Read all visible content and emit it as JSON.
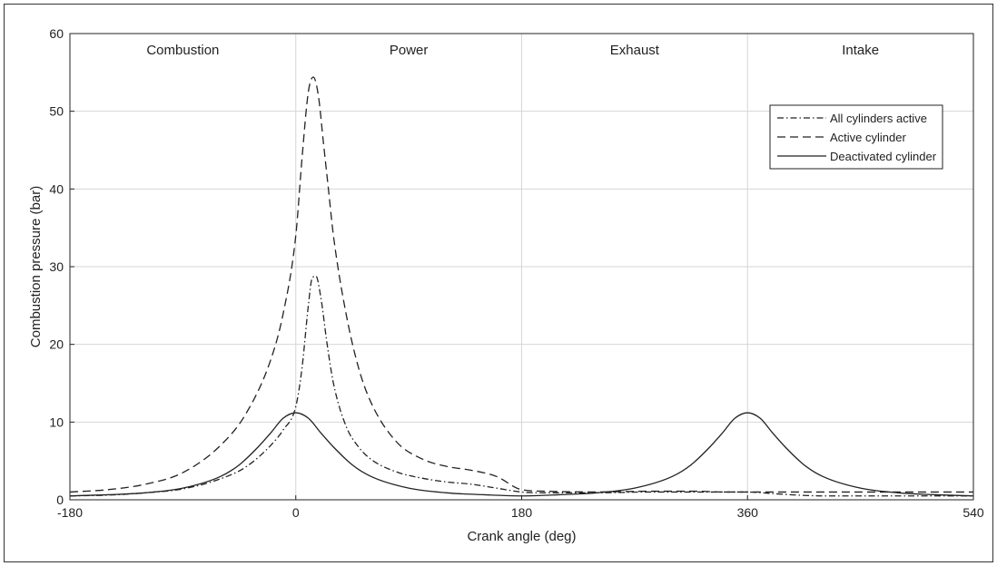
{
  "chart_data": {
    "type": "line",
    "title": "",
    "xlabel": "Crank angle (deg)",
    "ylabel": "Combustion pressure (bar)",
    "xlim": [
      -180,
      540
    ],
    "ylim": [
      0,
      60
    ],
    "xticks": [
      -180,
      0,
      180,
      360,
      540
    ],
    "yticks": [
      0,
      10,
      20,
      30,
      40,
      50,
      60
    ],
    "grid": true,
    "legend_position": "top-right",
    "phases": [
      "Combustion",
      "Power",
      "Exhaust",
      "Intake"
    ],
    "series": [
      {
        "name": "All cylinders active",
        "style": "dashdot",
        "x": [
          -180,
          -150,
          -120,
          -90,
          -60,
          -40,
          -20,
          -10,
          0,
          5,
          10,
          13,
          16,
          20,
          25,
          30,
          40,
          50,
          60,
          80,
          100,
          120,
          140,
          160,
          180,
          200,
          240,
          280,
          320,
          340,
          360,
          380,
          400,
          420,
          450,
          480,
          510,
          540
        ],
        "y": [
          0.5,
          0.6,
          0.9,
          1.4,
          2.7,
          4.2,
          7.0,
          9.0,
          12.0,
          17.0,
          25.0,
          28.5,
          28.8,
          26.0,
          20.0,
          15.0,
          9.5,
          6.8,
          5.2,
          3.6,
          2.8,
          2.3,
          2.0,
          1.5,
          1.0,
          0.9,
          0.9,
          1.0,
          1.0,
          1.0,
          1.0,
          0.8,
          0.6,
          0.5,
          0.5,
          0.5,
          0.5,
          0.5
        ]
      },
      {
        "name": "Active cylinder",
        "style": "dashed",
        "x": [
          -180,
          -150,
          -120,
          -90,
          -60,
          -40,
          -20,
          -10,
          0,
          5,
          10,
          14,
          18,
          22,
          26,
          30,
          40,
          50,
          60,
          80,
          100,
          120,
          140,
          160,
          180,
          200,
          240,
          280,
          320,
          340,
          360,
          380,
          400,
          420,
          450,
          480,
          510,
          540
        ],
        "y": [
          1.0,
          1.3,
          2.0,
          3.5,
          7.0,
          11.0,
          18.0,
          24.0,
          34.0,
          44.0,
          52.5,
          54.4,
          52.0,
          46.0,
          40.0,
          34.0,
          24.0,
          17.0,
          12.5,
          7.5,
          5.3,
          4.3,
          3.8,
          3.0,
          1.3,
          1.1,
          1.0,
          1.1,
          1.1,
          1.0,
          1.0,
          1.0,
          1.0,
          1.0,
          1.0,
          1.0,
          1.0,
          1.0
        ]
      },
      {
        "name": "Deactivated cylinder",
        "style": "solid",
        "x": [
          -180,
          -150,
          -120,
          -90,
          -60,
          -45,
          -30,
          -20,
          -10,
          0,
          10,
          20,
          30,
          45,
          60,
          90,
          120,
          150,
          180,
          210,
          240,
          270,
          300,
          315,
          330,
          340,
          350,
          360,
          370,
          380,
          390,
          405,
          420,
          450,
          480,
          510,
          540
        ],
        "y": [
          0.5,
          0.65,
          0.9,
          1.5,
          3.0,
          4.5,
          6.8,
          8.6,
          10.5,
          11.2,
          10.5,
          8.6,
          6.8,
          4.5,
          3.0,
          1.5,
          0.9,
          0.65,
          0.5,
          0.65,
          0.9,
          1.5,
          3.0,
          4.5,
          6.8,
          8.6,
          10.5,
          11.2,
          10.5,
          8.6,
          6.8,
          4.5,
          3.0,
          1.5,
          0.9,
          0.65,
          0.5
        ]
      }
    ]
  }
}
